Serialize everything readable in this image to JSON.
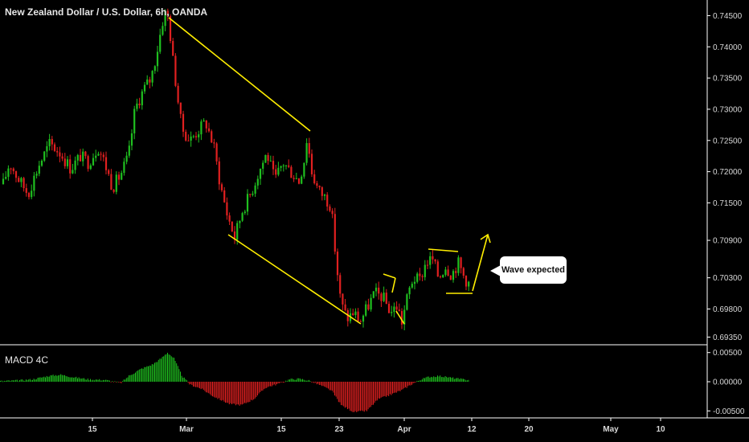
{
  "chart_data": {
    "type": "candlestick",
    "title": "New Zealand Dollar / U.S. Dollar, 6h, OANDA",
    "price_ticks": [
      "0.74500",
      "0.74000",
      "0.73500",
      "0.73000",
      "0.72500",
      "0.72000",
      "0.71500",
      "0.70900",
      "0.70300",
      "0.69800",
      "0.69350"
    ],
    "macd": {
      "title": "MACD 4C",
      "ticks": [
        "0.00500",
        "0.00000",
        "-0.00500"
      ],
      "ylim": [
        -0.0062,
        0.0062
      ]
    },
    "x_ticks": [
      "15",
      "Mar",
      "15",
      "23",
      "Apr",
      "12",
      "20",
      "May",
      "10"
    ],
    "ylim": [
      0.6924,
      0.7475
    ],
    "annotations": {
      "callout": "Wave expected"
    },
    "colors": {
      "up": "#1fbf1f",
      "down": "#e02020",
      "trendline": "#ffee00",
      "grid": "#ffffff",
      "text": "#d8d8d8"
    }
  }
}
